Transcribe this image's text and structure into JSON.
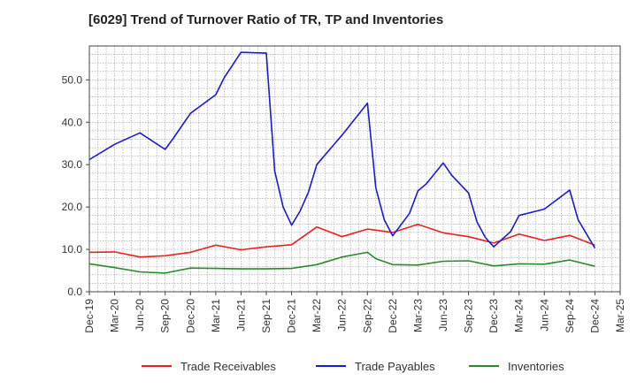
{
  "chart_data": {
    "type": "line",
    "title": "[6029]  Trend of Turnover Ratio of TR, TP and Inventories",
    "xlabel": "",
    "ylabel": "",
    "ylim": [
      0,
      58
    ],
    "y_ticks": [
      "0.0",
      "10.0",
      "20.0",
      "30.0",
      "40.0",
      "50.0"
    ],
    "y_tick_values": [
      0,
      10,
      20,
      30,
      40,
      50
    ],
    "x_tick_labels": [
      "Dec-19",
      "Mar-20",
      "Jun-20",
      "Sep-20",
      "Dec-20",
      "Mar-21",
      "Jun-21",
      "Sep-21",
      "Dec-21",
      "Mar-22",
      "Jun-22",
      "Sep-22",
      "Dec-22",
      "Mar-23",
      "Jun-23",
      "Sep-23",
      "Dec-23",
      "Mar-24",
      "Jun-24",
      "Sep-24",
      "Dec-24",
      "Mar-25"
    ],
    "x_range": [
      0,
      63
    ],
    "grid": true,
    "legend_position": "bottom",
    "series": [
      {
        "name": "Trade Receivables",
        "color": "#e8231f",
        "points": [
          [
            0,
            9.3
          ],
          [
            3,
            9.4
          ],
          [
            6,
            8.2
          ],
          [
            9,
            8.5
          ],
          [
            12,
            9.3
          ],
          [
            15,
            11.0
          ],
          [
            18,
            9.9
          ],
          [
            21,
            10.6
          ],
          [
            24,
            11.1
          ],
          [
            27,
            15.3
          ],
          [
            30,
            13.0
          ],
          [
            33,
            14.8
          ],
          [
            36,
            14.0
          ],
          [
            39,
            15.9
          ],
          [
            42,
            13.9
          ],
          [
            45,
            13.0
          ],
          [
            48,
            11.5
          ],
          [
            51,
            13.6
          ],
          [
            54,
            12.1
          ],
          [
            57,
            13.3
          ],
          [
            60,
            11.0
          ]
        ]
      },
      {
        "name": "Trade Payables",
        "color": "#1a1adb",
        "points": [
          [
            0,
            31.2
          ],
          [
            3,
            34.8
          ],
          [
            6,
            37.5
          ],
          [
            9,
            33.6
          ],
          [
            10,
            36.3
          ],
          [
            12,
            42.1
          ],
          [
            15,
            46.5
          ],
          [
            16,
            50.5
          ],
          [
            18,
            56.5
          ],
          [
            21,
            56.3
          ],
          [
            22,
            28.5
          ],
          [
            23,
            20.0
          ],
          [
            24,
            15.7
          ],
          [
            25,
            19.0
          ],
          [
            26,
            23.5
          ],
          [
            27,
            30.0
          ],
          [
            30,
            37.0
          ],
          [
            33,
            44.5
          ],
          [
            34,
            24.5
          ],
          [
            35,
            17.0
          ],
          [
            36,
            13.2
          ],
          [
            38,
            18.5
          ],
          [
            39,
            23.8
          ],
          [
            40,
            25.5
          ],
          [
            42,
            30.4
          ],
          [
            43,
            27.5
          ],
          [
            45,
            23.3
          ],
          [
            46,
            16.5
          ],
          [
            47,
            12.8
          ],
          [
            48,
            10.6
          ],
          [
            50,
            14.2
          ],
          [
            51,
            18.0
          ],
          [
            54,
            19.5
          ],
          [
            57,
            24.0
          ],
          [
            58,
            17.0
          ],
          [
            60,
            10.3
          ]
        ]
      },
      {
        "name": "Inventories",
        "color": "#2a8a2a",
        "points": [
          [
            0,
            6.6
          ],
          [
            3,
            5.7
          ],
          [
            6,
            4.7
          ],
          [
            9,
            4.4
          ],
          [
            12,
            5.6
          ],
          [
            15,
            5.5
          ],
          [
            18,
            5.4
          ],
          [
            21,
            5.4
          ],
          [
            24,
            5.5
          ],
          [
            27,
            6.4
          ],
          [
            30,
            8.2
          ],
          [
            33,
            9.3
          ],
          [
            34,
            7.8
          ],
          [
            36,
            6.4
          ],
          [
            39,
            6.3
          ],
          [
            42,
            7.2
          ],
          [
            45,
            7.3
          ],
          [
            48,
            6.1
          ],
          [
            51,
            6.6
          ],
          [
            54,
            6.5
          ],
          [
            57,
            7.5
          ],
          [
            60,
            6.0
          ]
        ]
      }
    ]
  }
}
